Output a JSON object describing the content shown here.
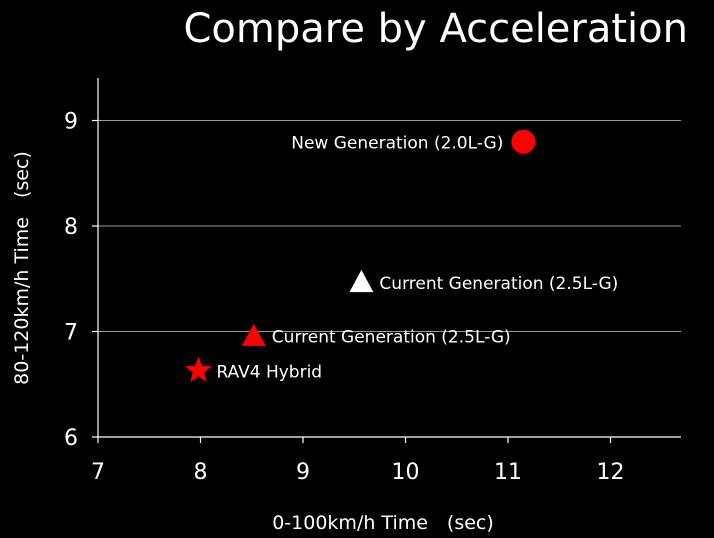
{
  "chart_data": {
    "type": "scatter",
    "title": "Compare by Acceleration",
    "xlabel": "0-100km/h Time　(sec)",
    "ylabel": "80-120km/h Time　(sec)",
    "xlim": [
      7,
      12.75
    ],
    "ylim": [
      6,
      9.4
    ],
    "x_ticks": [
      7,
      8,
      9,
      10,
      11,
      12
    ],
    "y_ticks": [
      6,
      7,
      8,
      9
    ],
    "grid": "horizontal",
    "points": [
      {
        "label": "New Generation (2.0L-G)",
        "x": 11.15,
        "y": 8.8,
        "marker": "circle",
        "color": "#ff0000",
        "label_side": "left"
      },
      {
        "label": "Current Generation (2.5L-G)",
        "x": 9.57,
        "y": 7.47,
        "marker": "triangle",
        "color": "#ffffff",
        "label_side": "right"
      },
      {
        "label": "Current Generation (2.5L-G)",
        "x": 8.52,
        "y": 6.96,
        "marker": "triangle",
        "color": "#ff0000",
        "label_side": "right"
      },
      {
        "label": "RAV4 Hybrid",
        "x": 7.98,
        "y": 6.63,
        "marker": "star",
        "color": "#ff0000",
        "label_side": "right"
      }
    ]
  }
}
